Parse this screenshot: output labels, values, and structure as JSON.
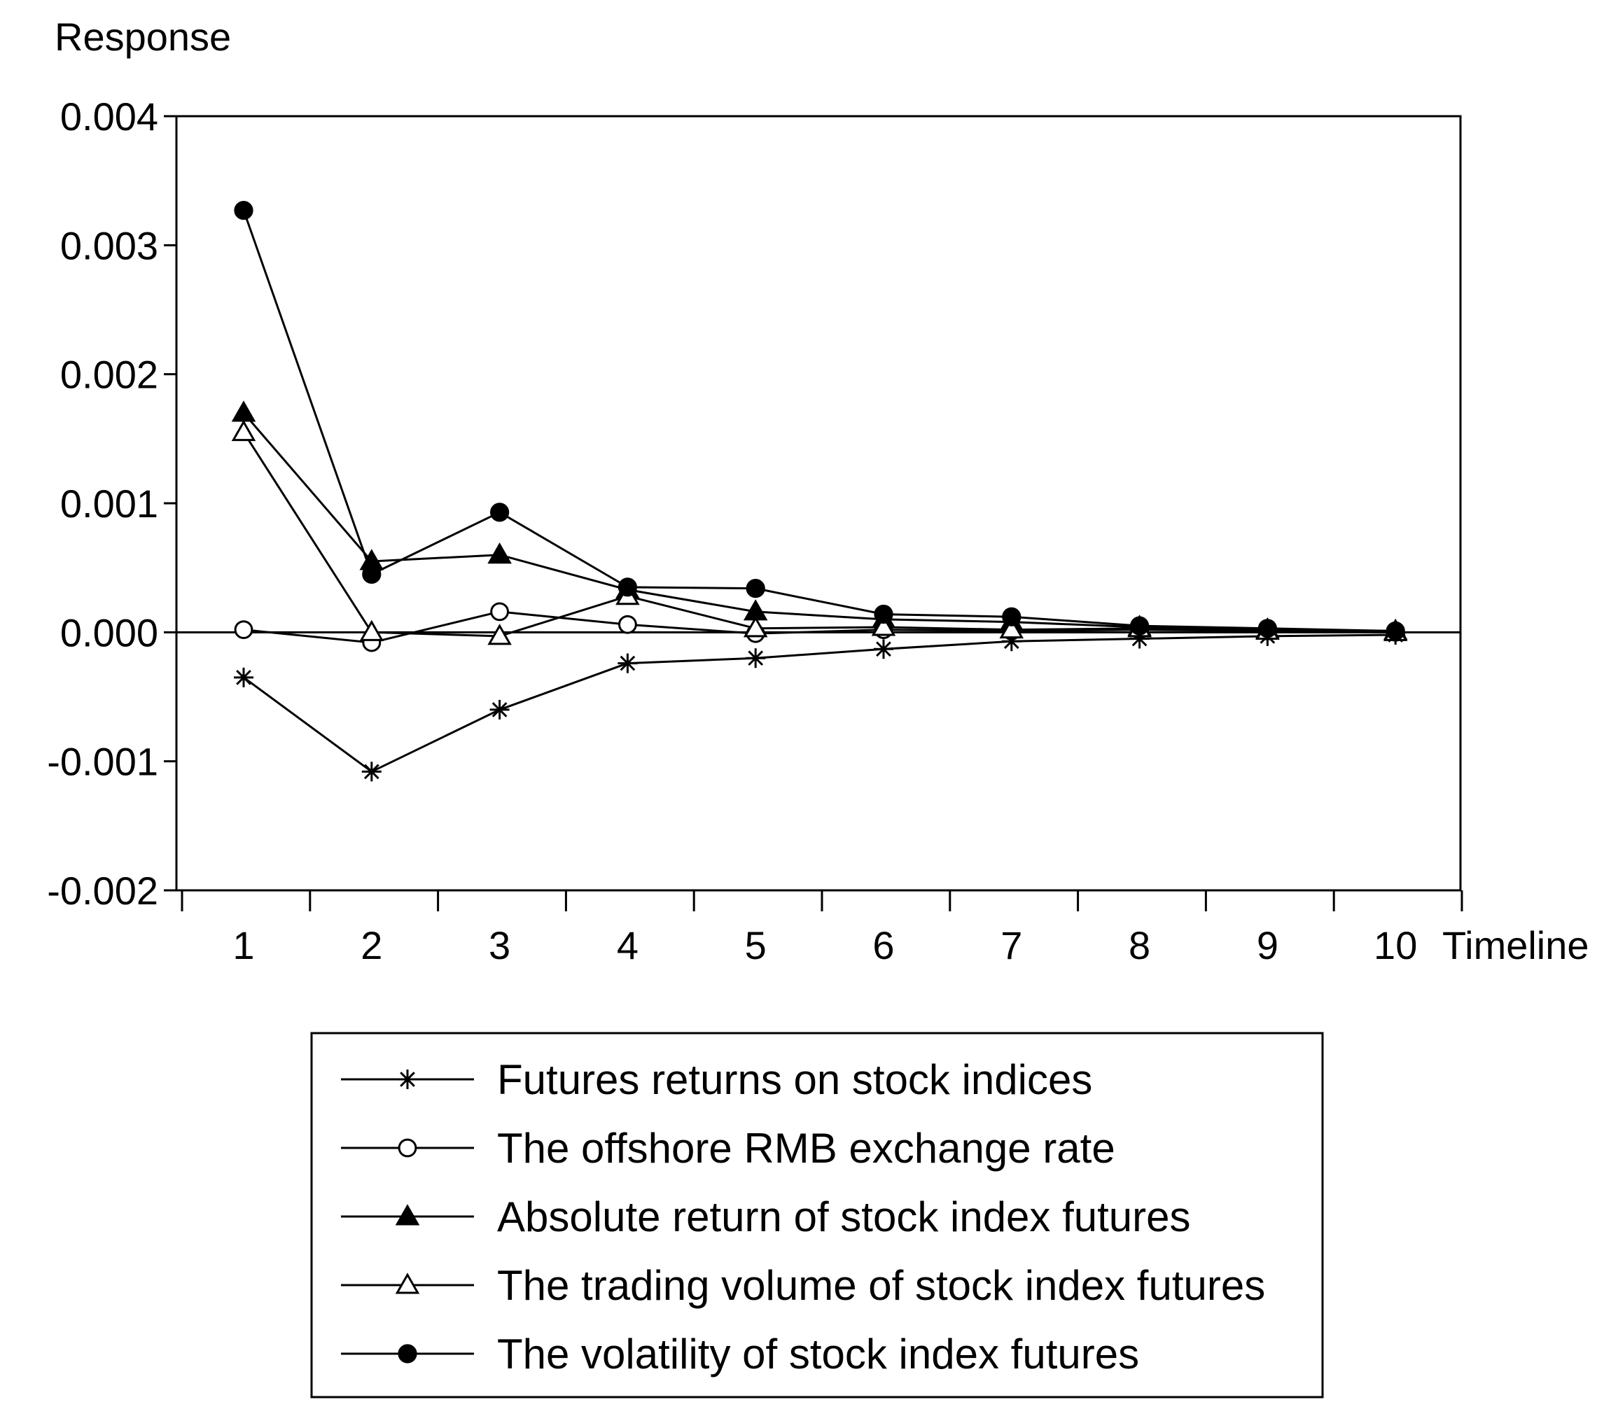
{
  "chart_data": {
    "type": "line",
    "ylabel": "Response",
    "xlabel": "Timeline",
    "x": [
      1,
      2,
      3,
      4,
      5,
      6,
      7,
      8,
      9,
      10
    ],
    "ylim": [
      -0.002,
      0.004
    ],
    "yticks": [
      "0.004",
      "0.003",
      "0.002",
      "0.001",
      "0.000",
      "-0.001",
      "-0.002"
    ],
    "ytick_values": [
      0.004,
      0.003,
      0.002,
      0.001,
      0.0,
      -0.001,
      -0.002
    ],
    "xticks": [
      "1",
      "2",
      "3",
      "4",
      "5",
      "6",
      "7",
      "8",
      "9",
      "10"
    ],
    "grid": false,
    "zero_line": true,
    "legend_position": "bottom",
    "series": [
      {
        "name": "Futures returns on stock indices",
        "marker": "asterisk",
        "values": [
          -0.00035,
          -0.00108,
          -0.0006,
          -0.00024,
          -0.0002,
          -0.00013,
          -7e-05,
          -5e-05,
          -3e-05,
          -2e-05
        ]
      },
      {
        "name": "The offshore RMB exchange rate",
        "marker": "circle-open",
        "values": [
          2e-05,
          -8e-05,
          0.00016,
          6e-05,
          -1e-05,
          2e-05,
          1e-05,
          2e-05,
          1e-05,
          0.0
        ]
      },
      {
        "name": "Absolute return of stock index futures",
        "marker": "triangle-filled",
        "values": [
          0.0017,
          0.00055,
          0.0006,
          0.00033,
          0.00016,
          0.0001,
          8e-05,
          4e-05,
          2e-05,
          1e-05
        ]
      },
      {
        "name": "The trading volume of stock index futures",
        "marker": "triangle-open",
        "values": [
          0.00155,
          0.0,
          -3e-05,
          0.00028,
          3e-05,
          4e-05,
          2e-05,
          3e-05,
          1e-05,
          0.0
        ]
      },
      {
        "name": "The volatility of stock index futures",
        "marker": "circle-filled",
        "values": [
          0.00327,
          0.00045,
          0.00093,
          0.00035,
          0.00034,
          0.00014,
          0.00012,
          5e-05,
          3e-05,
          1e-05
        ]
      }
    ]
  }
}
